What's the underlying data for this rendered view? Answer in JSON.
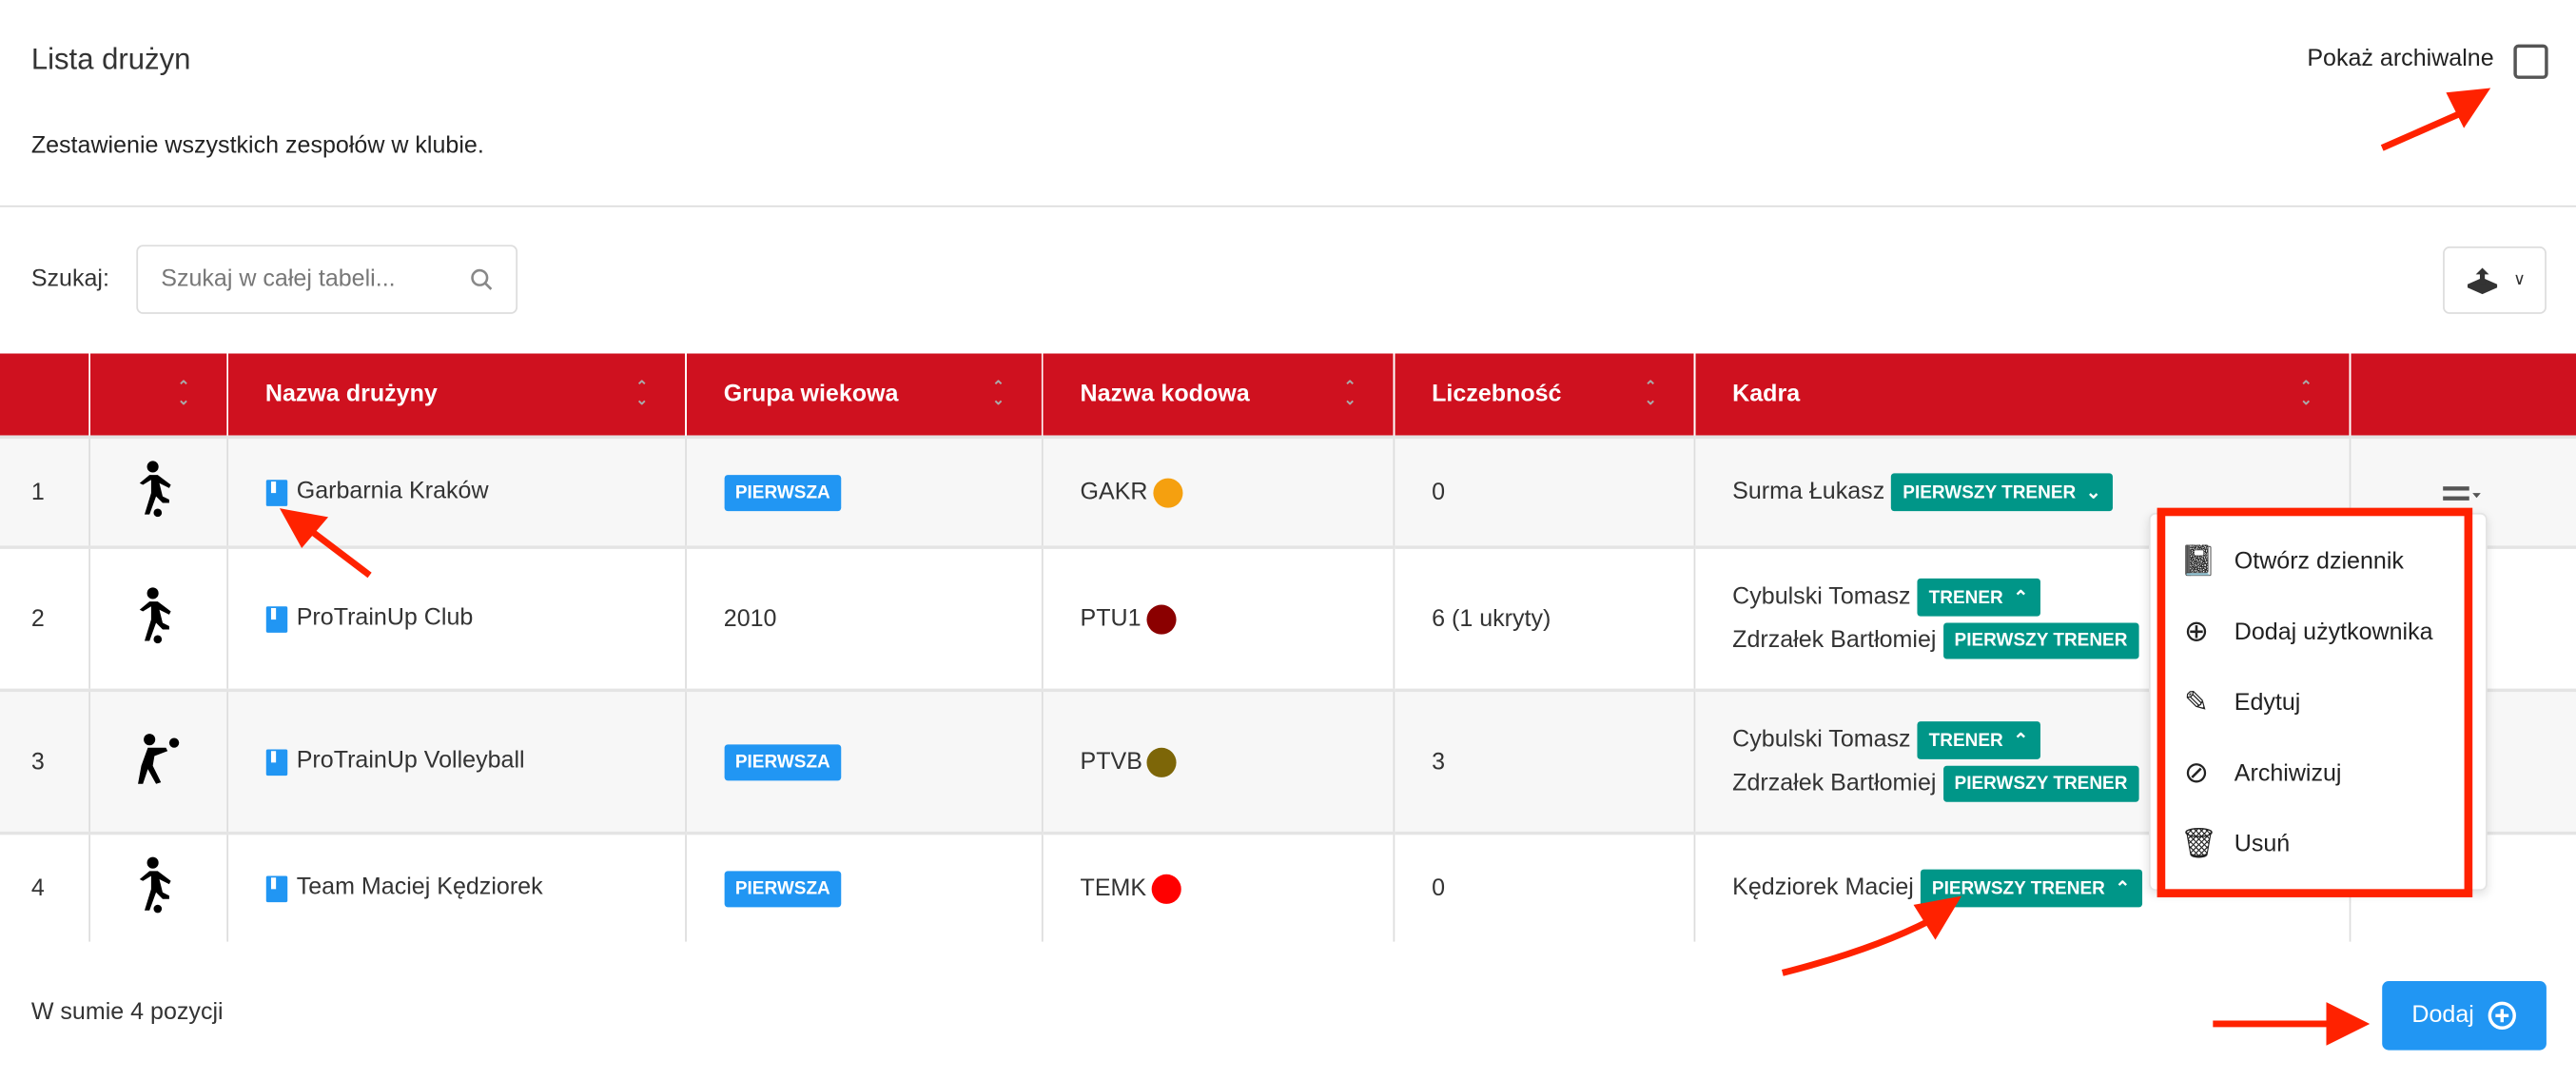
{
  "header": {
    "title": "Lista drużyn",
    "subtitle": "Zestawienie wszystkich zespołów w klubie.",
    "show_archived_label": "Pokaż archiwalne",
    "show_archived_checked": false
  },
  "search": {
    "label": "Szukaj:",
    "placeholder": "Szukaj w całej tabeli..."
  },
  "table": {
    "columns": [
      "",
      "",
      "Nazwa drużyny",
      "Grupa wiekowa",
      "Nazwa kodowa",
      "Liczebność",
      "Kadra",
      ""
    ],
    "rows": [
      {
        "no": "1",
        "sport_icon": "soccer-player-icon",
        "name": "Garbarnia Kraków",
        "age_group": "PIERWSZA",
        "age_group_badge": true,
        "code": "GAKR",
        "code_color": "#f5a00f",
        "count": "0",
        "staff": [
          {
            "name": "Surma Łukasz",
            "role": "PIERWSZY TRENER",
            "chevron": "down"
          }
        ]
      },
      {
        "no": "2",
        "sport_icon": "soccer-player-icon",
        "name": "ProTrainUp Club",
        "age_group": "2010",
        "age_group_badge": false,
        "code": "PTU1",
        "code_color": "#8b0000",
        "count": "6 (1 ukryty)",
        "staff": [
          {
            "name": "Cybulski Tomasz",
            "role": "TRENER",
            "chevron": "up"
          },
          {
            "name": "Zdrzałek Bartłomiej",
            "role": "PIERWSZY TRENER",
            "chevron": ""
          }
        ]
      },
      {
        "no": "3",
        "sport_icon": "volleyball-player-icon",
        "name": "ProTrainUp Volleyball",
        "age_group": "PIERWSZA",
        "age_group_badge": true,
        "code": "PTVB",
        "code_color": "#7d6608",
        "count": "3",
        "staff": [
          {
            "name": "Cybulski Tomasz",
            "role": "TRENER",
            "chevron": "up"
          },
          {
            "name": "Zdrzałek Bartłomiej",
            "role": "PIERWSZY TRENER",
            "chevron": ""
          }
        ]
      },
      {
        "no": "4",
        "sport_icon": "soccer-player-icon",
        "name": "Team Maciej Kędziorek",
        "age_group": "PIERWSZA",
        "age_group_badge": true,
        "code": "TEMK",
        "code_color": "#ff0000",
        "count": "0",
        "staff": [
          {
            "name": "Kędziorek Maciej",
            "role": "PIERWSZY TRENER",
            "chevron": "up"
          }
        ]
      }
    ]
  },
  "menu": {
    "items": [
      {
        "label": "Otwórz dziennik",
        "icon": "book-icon"
      },
      {
        "label": "Dodaj użytkownika",
        "icon": "plus-circle-icon"
      },
      {
        "label": "Edytuj",
        "icon": "edit-icon"
      },
      {
        "label": "Archiwizuj",
        "icon": "eye-off-icon"
      },
      {
        "label": "Usuń",
        "icon": "trash-icon"
      }
    ]
  },
  "footer": {
    "total": "W sumie 4 pozycji",
    "add_label": "Dodaj"
  },
  "colors": {
    "header_red": "#cf111f",
    "teal": "#009688",
    "blue": "#2196f3",
    "annotation": "#ff2200"
  }
}
